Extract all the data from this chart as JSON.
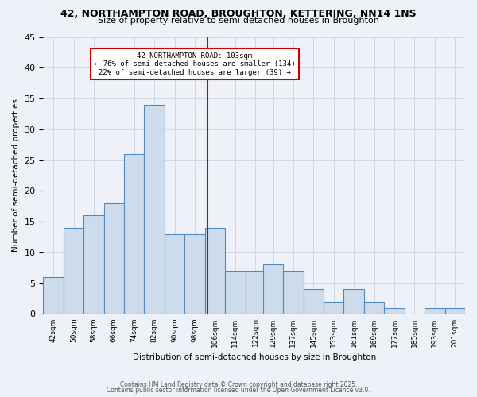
{
  "title1": "42, NORTHAMPTON ROAD, BROUGHTON, KETTERING, NN14 1NS",
  "title2": "Size of property relative to semi-detached houses in Broughton",
  "xlabel": "Distribution of semi-detached houses by size in Broughton",
  "ylabel": "Number of semi-detached properties",
  "bin_labels": [
    42,
    50,
    58,
    66,
    74,
    82,
    90,
    98,
    106,
    114,
    122,
    129,
    137,
    145,
    153,
    161,
    169,
    177,
    185,
    193,
    201
  ],
  "values": [
    6,
    14,
    16,
    18,
    26,
    34,
    13,
    13,
    14,
    7,
    7,
    8,
    7,
    4,
    2,
    4,
    2,
    1,
    0,
    1,
    1
  ],
  "bar_color": "#ccdcec",
  "bar_edge_color": "#5588bb",
  "grid_color": "#ccd8e8",
  "bg_color": "#eef2f8",
  "fig_color": "#eef2f8",
  "vline_x_index": 8,
  "vline_color": "#cc0000",
  "annotation_line1": "42 NORTHAMPTON ROAD: 103sqm",
  "annotation_line2": "← 76% of semi-detached houses are smaller (134)",
  "annotation_line3": "22% of semi-detached houses are larger (39) →",
  "annotation_box_color": "#cc0000",
  "ylim": [
    0,
    45
  ],
  "yticks": [
    0,
    5,
    10,
    15,
    20,
    25,
    30,
    35,
    40,
    45
  ],
  "footer1": "Contains HM Land Registry data © Crown copyright and database right 2025.",
  "footer2": "Contains public sector information licensed under the Open Government Licence v3.0."
}
